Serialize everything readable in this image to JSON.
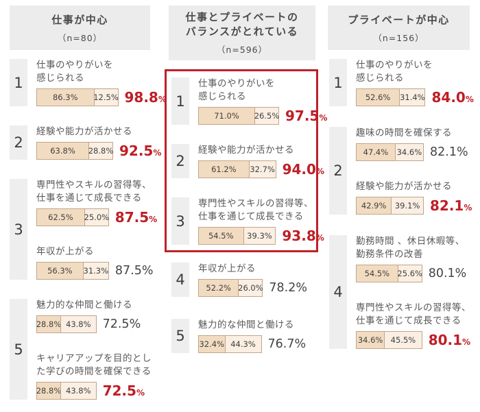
{
  "percent_sign": "%",
  "colors": {
    "accent_red": "#bf1e26",
    "highlight_frame_border": "#bf2028",
    "bar_left_fill": "#f2dcc1",
    "bar_right_fill": "#faefe2",
    "bar_border": "#bfa58c",
    "header_bg": "#edecec",
    "rank_bg": "#efeeee",
    "text_dark": "#434343",
    "text_label": "#595959"
  },
  "chart_data": {
    "type": "bar",
    "subtype": "horizontal-stacked-ranked-list",
    "unit": "%",
    "orientation": "horizontal",
    "legend": "none",
    "columns": [
      {
        "title": "仕事が中心",
        "n_label": "（n=80）",
        "highlighted_top3": false,
        "groups": [
          {
            "rank": "1",
            "items": [
              {
                "label": "仕事のやりがいを\n感じられる",
                "seg1": 86.3,
                "seg1_label": "86.3%",
                "seg2": 12.5,
                "seg2_label": "12.5%",
                "total": 98.8,
                "total_label": "98.8",
                "emphasis": true
              }
            ]
          },
          {
            "rank": "2",
            "items": [
              {
                "label": "経験や能力が活かせる",
                "seg1": 63.8,
                "seg1_label": "63.8%",
                "seg2": 28.8,
                "seg2_label": "28.8%",
                "total": 92.5,
                "total_label": "92.5",
                "emphasis": true
              }
            ]
          },
          {
            "rank": "3",
            "items": [
              {
                "label": "専門性やスキルの習得等、\n仕事を通じて成長できる",
                "seg1": 62.5,
                "seg1_label": "62.5%",
                "seg2": 25.0,
                "seg2_label": "25.0%",
                "total": 87.5,
                "total_label": "87.5",
                "emphasis": true
              },
              {
                "label": "年収が上がる",
                "seg1": 56.3,
                "seg1_label": "56.3%",
                "seg2": 31.3,
                "seg2_label": "31.3%",
                "total": 87.5,
                "total_label": "87.5",
                "emphasis": false
              }
            ]
          },
          {
            "rank": "5",
            "items": [
              {
                "label": "魅力的な仲間と働ける",
                "seg1": 28.8,
                "seg1_label": "28.8%",
                "seg2": 43.8,
                "seg2_label": "43.8%",
                "total": 72.5,
                "total_label": "72.5",
                "emphasis": false
              },
              {
                "label": "キャリアアップを目的とし\nた学びの時間を確保できる",
                "seg1": 28.8,
                "seg1_label": "28.8%",
                "seg2": 43.8,
                "seg2_label": "43.8%",
                "total": 72.5,
                "total_label": "72.5",
                "emphasis": true
              }
            ]
          }
        ]
      },
      {
        "title": "仕事とプライベートの\nバランスがとれている",
        "n_label": "（n=596）",
        "highlighted_top3": true,
        "groups": [
          {
            "rank": "1",
            "items": [
              {
                "label": "仕事のやりがいを\n感じられる",
                "seg1": 71.0,
                "seg1_label": "71.0%",
                "seg2": 26.5,
                "seg2_label": "26.5%",
                "total": 97.5,
                "total_label": "97.5",
                "emphasis": true
              }
            ]
          },
          {
            "rank": "2",
            "items": [
              {
                "label": "経験や能力が活かせる",
                "seg1": 61.2,
                "seg1_label": "61.2%",
                "seg2": 32.7,
                "seg2_label": "32.7%",
                "total": 94.0,
                "total_label": "94.0",
                "emphasis": true
              }
            ]
          },
          {
            "rank": "3",
            "items": [
              {
                "label": "専門性やスキルの習得等、\n仕事を通じて成長できる",
                "seg1": 54.5,
                "seg1_label": "54.5%",
                "seg2": 39.3,
                "seg2_label": "39.3%",
                "total": 93.8,
                "total_label": "93.8",
                "emphasis": true
              }
            ]
          },
          {
            "rank": "4",
            "items": [
              {
                "label": "年収が上がる",
                "seg1": 52.2,
                "seg1_label": "52.2%",
                "seg2": 26.0,
                "seg2_label": "26.0%",
                "total": 78.2,
                "total_label": "78.2",
                "emphasis": false
              }
            ]
          },
          {
            "rank": "5",
            "items": [
              {
                "label": "魅力的な仲間と働ける",
                "seg1": 32.4,
                "seg1_label": "32.4%",
                "seg2": 44.3,
                "seg2_label": "44.3%",
                "total": 76.7,
                "total_label": "76.7",
                "emphasis": false
              }
            ]
          }
        ]
      },
      {
        "title": "プライベートが中心",
        "n_label": "（n=156）",
        "highlighted_top3": false,
        "groups": [
          {
            "rank": "1",
            "items": [
              {
                "label": "仕事のやりがいを\n感じられる",
                "seg1": 52.6,
                "seg1_label": "52.6%",
                "seg2": 31.4,
                "seg2_label": "31.4%",
                "total": 84.0,
                "total_label": "84.0",
                "emphasis": true
              }
            ]
          },
          {
            "rank": "2",
            "items": [
              {
                "label": "趣味の時間を確保する",
                "seg1": 47.4,
                "seg1_label": "47.4%",
                "seg2": 34.6,
                "seg2_label": "34.6%",
                "total": 82.1,
                "total_label": "82.1",
                "emphasis": false
              },
              {
                "label": "経験や能力が活かせる",
                "seg1": 42.9,
                "seg1_label": "42.9%",
                "seg2": 39.1,
                "seg2_label": "39.1%",
                "total": 82.1,
                "total_label": "82.1",
                "emphasis": true
              }
            ]
          },
          {
            "rank": "4",
            "items": [
              {
                "label": "勤務時間 、休日休暇等、\n勤務条件の改善",
                "seg1": 54.5,
                "seg1_label": "54.5%",
                "seg2": 25.6,
                "seg2_label": "25.6%",
                "total": 80.1,
                "total_label": "80.1",
                "emphasis": false
              },
              {
                "label": "専門性やスキルの習得等、\n仕事を通じて成長できる",
                "seg1": 34.6,
                "seg1_label": "34.6%",
                "seg2": 45.5,
                "seg2_label": "45.5%",
                "total": 80.1,
                "total_label": "80.1",
                "emphasis": true
              }
            ]
          }
        ]
      }
    ]
  }
}
